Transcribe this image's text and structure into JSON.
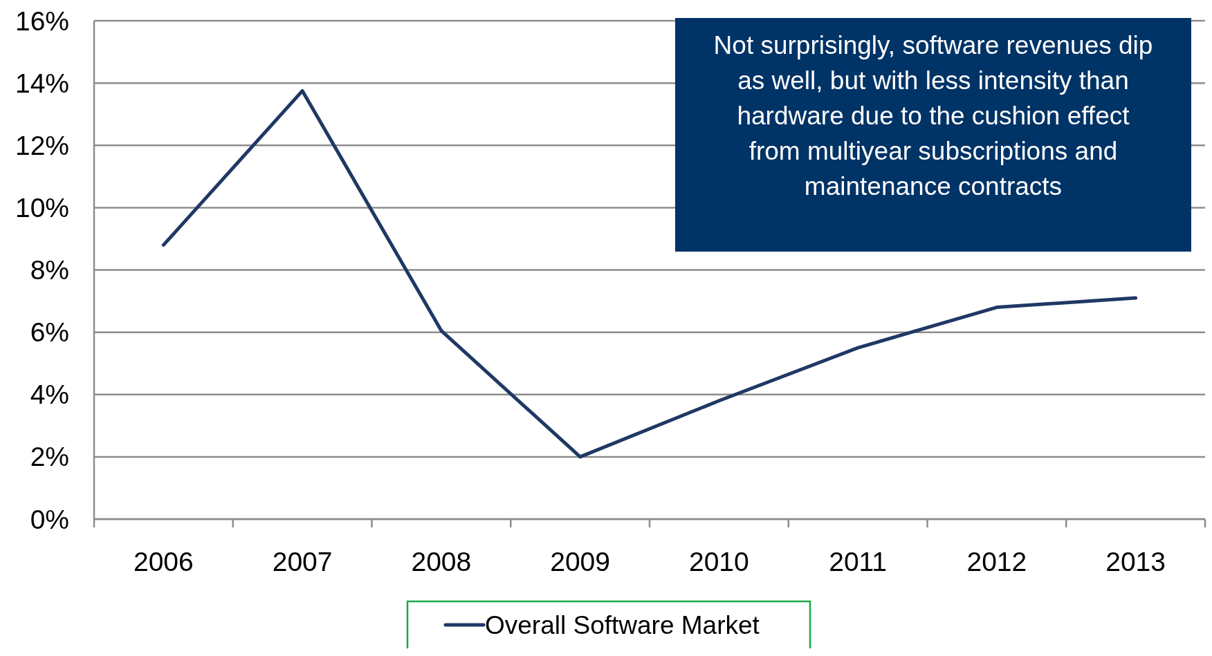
{
  "chart_data": {
    "type": "line",
    "categories": [
      "2006",
      "2007",
      "2008",
      "2009",
      "2010",
      "2011",
      "2012",
      "2013"
    ],
    "series": [
      {
        "name": "Overall Software Market",
        "color": "#1f3864",
        "values": [
          8.8,
          13.75,
          6.05,
          2.0,
          3.8,
          5.5,
          6.8,
          7.1
        ]
      }
    ],
    "ylim": [
      0,
      16
    ],
    "yticks": [
      {
        "value": 0,
        "label": "0%"
      },
      {
        "value": 2,
        "label": "2%"
      },
      {
        "value": 4,
        "label": "4%"
      },
      {
        "value": 6,
        "label": "6%"
      },
      {
        "value": 8,
        "label": "8%"
      },
      {
        "value": 10,
        "label": "10%"
      },
      {
        "value": 12,
        "label": "12%"
      },
      {
        "value": 14,
        "label": "14%"
      },
      {
        "value": 16,
        "label": "16%"
      }
    ],
    "grid": "y",
    "legend": "bottom",
    "marker": "none",
    "line_style": "solid",
    "annotations": [
      "Not surprisingly, software revenues dip as well, but with less intensity than hardware due to the cushion effect from multiyear subscriptions and maintenance contracts"
    ]
  }
}
